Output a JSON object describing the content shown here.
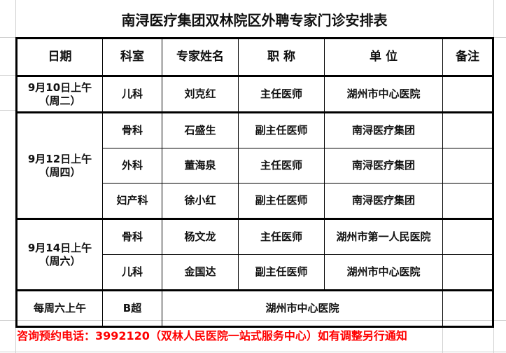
{
  "title": "南浔医疗集团双林院区外聘专家门诊安排表",
  "headers": [
    "日期",
    "科室",
    "专家姓名",
    "职 称",
    "单 位",
    "备注"
  ],
  "rows": [
    {
      "date": "9月10日上午",
      "weekday": "（周二）",
      "dept": "儿科",
      "name": "刘克红",
      "rank": "主任医师",
      "unit": "湖州市中心医院"
    },
    {
      "date": "9月12日上午",
      "weekday": "（周四）",
      "dept": "骨科",
      "name": "石盛生",
      "rank": "副主任医师",
      "unit": "南浔医疗集团"
    },
    {
      "dept": "外科",
      "name": "董海泉",
      "rank": "主任医师",
      "unit": "南浔医疗集团"
    },
    {
      "dept": "妇产科",
      "name": "徐小红",
      "rank": "副主任医师",
      "unit": "南浔医疗集团"
    },
    {
      "date": "9月14日上午",
      "weekday": "（周六）",
      "dept": "骨科",
      "name": "杨文龙",
      "rank": "主任医师",
      "unit": "湖州市第一人民医院"
    },
    {
      "dept": "儿科",
      "name": "金国达",
      "rank": "副主任医师",
      "unit": "湖州市中心医院"
    },
    {
      "date": "每周六上午",
      "dept": "B超",
      "unit": "湖州市中心医院"
    }
  ],
  "footer": "咨询预约电话：3992120（双林人民医院一站式服务中心）如有调整另行通知"
}
